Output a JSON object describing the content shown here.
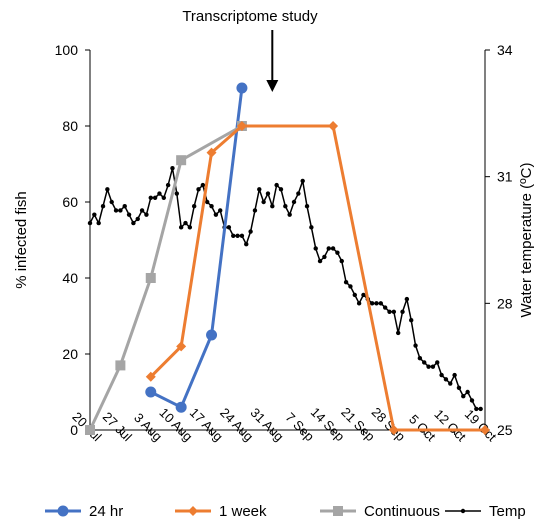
{
  "chart_data": {
    "type": "line",
    "annotation": "Transcriptome study",
    "ylabel_left": "% infected fish",
    "ylabel_right": "Water temperature (ºC)",
    "ylim_left": [
      0,
      100
    ],
    "ylim_right": [
      25,
      34
    ],
    "yticks_left": [
      0,
      20,
      40,
      60,
      80,
      100
    ],
    "yticks_right": [
      25,
      28,
      31,
      34
    ],
    "xticks": [
      "20 Jul",
      "27 Jul",
      "3 Aug",
      "10 Aug",
      "17 Aug",
      "24 Aug",
      "31 Aug",
      "7 Sep",
      "14 Sep",
      "21 Sep",
      "28 Sep",
      "5 Oct",
      "12 Oct",
      "19 Oct"
    ],
    "legend_position": "bottom",
    "series": [
      {
        "name": "24 hr",
        "axis": "left",
        "color": "#4472C4",
        "marker": "circle",
        "points": [
          [
            "3 Aug",
            10
          ],
          [
            "10 Aug",
            6
          ],
          [
            "17 Aug",
            25
          ],
          [
            "24 Aug",
            90
          ]
        ]
      },
      {
        "name": "1 week",
        "axis": "left",
        "color": "#ED7D31",
        "marker": "diamond",
        "points": [
          [
            "3 Aug",
            14
          ],
          [
            "10 Aug",
            22
          ],
          [
            "17 Aug",
            73
          ],
          [
            "24 Aug",
            80
          ],
          [
            "14 Sep",
            80
          ],
          [
            "28 Sep",
            0
          ],
          [
            "19 Oct",
            0
          ]
        ]
      },
      {
        "name": "Continuous",
        "axis": "left",
        "color": "#A5A5A5",
        "marker": "square",
        "points": [
          [
            "20 Jul",
            0
          ],
          [
            "27 Jul",
            17
          ],
          [
            "3 Aug",
            40
          ],
          [
            "10 Aug",
            71
          ],
          [
            "24 Aug",
            80
          ]
        ]
      },
      {
        "name": "Temp",
        "axis": "right",
        "color": "#000000",
        "marker": "dot",
        "start": "20 Jul",
        "values": [
          29.9,
          30.1,
          29.9,
          30.3,
          30.7,
          30.4,
          30.2,
          30.2,
          30.3,
          30.1,
          29.9,
          30.0,
          30.2,
          30.1,
          30.5,
          30.5,
          30.6,
          30.5,
          30.8,
          31.2,
          30.6,
          29.8,
          29.9,
          29.8,
          30.3,
          30.7,
          30.8,
          30.4,
          30.3,
          30.1,
          30.2,
          29.8,
          29.8,
          29.6,
          29.6,
          29.6,
          29.4,
          29.7,
          30.2,
          30.7,
          30.4,
          30.6,
          30.3,
          30.8,
          30.7,
          30.3,
          30.1,
          30.4,
          30.6,
          30.9,
          30.3,
          29.8,
          29.3,
          29.0,
          29.1,
          29.3,
          29.3,
          29.2,
          29.0,
          28.5,
          28.4,
          28.2,
          28.0,
          28.2,
          28.1,
          28.0,
          28.0,
          28.0,
          27.9,
          27.8,
          27.8,
          27.3,
          27.8,
          28.1,
          27.6,
          27.0,
          26.7,
          26.6,
          26.5,
          26.5,
          26.6,
          26.3,
          26.2,
          26.1,
          26.3,
          26.0,
          25.8,
          25.9,
          25.7,
          25.5,
          25.5
        ]
      }
    ]
  }
}
